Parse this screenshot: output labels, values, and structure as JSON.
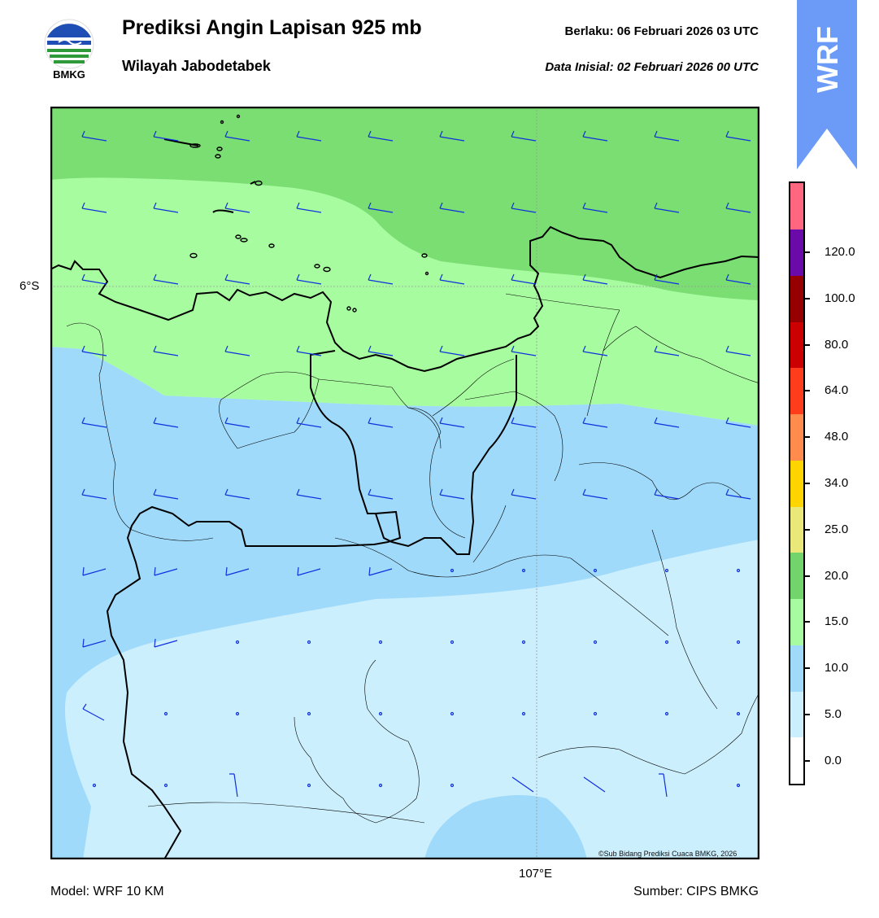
{
  "header": {
    "title": "Prediksi Angin Lapisan 925 mb",
    "subtitle": "Wilayah Jabodetabek",
    "valid": "Berlaku:  06 Februari 2026 03 UTC",
    "initial": "Data Inisial:  02 Februari 2026 00 UTC"
  },
  "logo": {
    "text": "BMKG",
    "colors": {
      "blue": "#1f4fb4",
      "green": "#2e9a3a"
    }
  },
  "banner": {
    "text": "WRF",
    "color": "#6b9bf7"
  },
  "map": {
    "lat_label": "6°S",
    "lon_label": "107°E",
    "copyright": "©Sub Bidang Prediksi Cuaca BMKG, 2026",
    "barb_color": "#1030e0",
    "coast_color": "#000000"
  },
  "footer": {
    "model": "Model: WRF 10 KM",
    "source": "Sumber: CIPS BMKG"
  },
  "colorbar": {
    "labels": [
      "0.0",
      "5.0",
      "10.0",
      "15.0",
      "20.0",
      "25.0",
      "34.0",
      "48.0",
      "64.0",
      "80.0",
      "100.0",
      "120.0"
    ],
    "colors": [
      "#ffffff",
      "#cceffd",
      "#a0dafa",
      "#a8fca0",
      "#74d46c",
      "#ebe87a",
      "#ffd500",
      "#ff8c4c",
      "#ff3c1c",
      "#cc0000",
      "#960000",
      "#6a0aa8",
      "#ff6680"
    ],
    "fill_colors": {
      "calm": "#cceffd",
      "light": "#a0dafa",
      "moderate": "#a8fca0",
      "strong": "#7bde72"
    }
  }
}
